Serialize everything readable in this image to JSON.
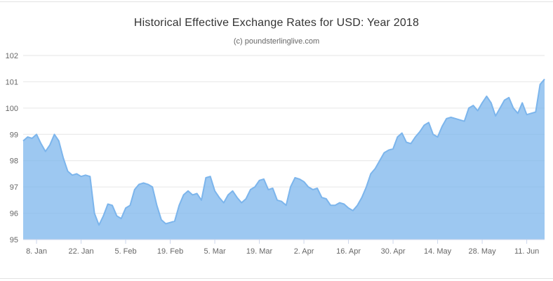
{
  "chart_data": {
    "type": "area",
    "title": "Historical Effective Exchange Rates for USD: Year 2018",
    "subtitle": "(c) poundsterlinglive.com",
    "ylabel": "",
    "xlabel": "",
    "ylim": [
      95,
      102
    ],
    "y_ticks": [
      95,
      96,
      97,
      98,
      99,
      100,
      101,
      102
    ],
    "grid": true,
    "legend": "none",
    "x_tick_labels": [
      "8. Jan",
      "22. Jan",
      "5. Feb",
      "19. Feb",
      "5. Mar",
      "19. Mar",
      "2. Apr",
      "16. Apr",
      "30. Apr",
      "14. May",
      "28. May",
      "11. Jun"
    ],
    "x_tick_indices": [
      3,
      13,
      23,
      33,
      43,
      53,
      63,
      73,
      83,
      93,
      103,
      113
    ],
    "series": [
      {
        "color": "#7cb5ec",
        "fill_opacity": 0.75,
        "values": [
          98.75,
          98.9,
          98.85,
          99.0,
          98.65,
          98.35,
          98.6,
          99.0,
          98.75,
          98.1,
          97.6,
          97.45,
          97.5,
          97.4,
          97.45,
          97.4,
          96.0,
          95.55,
          95.9,
          96.35,
          96.3,
          95.9,
          95.8,
          96.2,
          96.3,
          96.9,
          97.1,
          97.15,
          97.1,
          97.0,
          96.3,
          95.75,
          95.6,
          95.65,
          95.7,
          96.3,
          96.7,
          96.85,
          96.7,
          96.75,
          96.5,
          97.35,
          97.4,
          96.85,
          96.6,
          96.4,
          96.7,
          96.85,
          96.6,
          96.4,
          96.55,
          96.9,
          97.0,
          97.25,
          97.3,
          96.9,
          96.95,
          96.5,
          96.45,
          96.3,
          97.0,
          97.35,
          97.3,
          97.2,
          97.0,
          96.9,
          96.95,
          96.6,
          96.55,
          96.3,
          96.3,
          96.4,
          96.35,
          96.2,
          96.1,
          96.3,
          96.6,
          97.0,
          97.5,
          97.7,
          98.0,
          98.3,
          98.4,
          98.45,
          98.9,
          99.05,
          98.7,
          98.65,
          98.9,
          99.1,
          99.35,
          99.45,
          99.0,
          98.9,
          99.3,
          99.6,
          99.65,
          99.6,
          99.55,
          99.5,
          100.0,
          100.1,
          99.9,
          100.2,
          100.45,
          100.2,
          99.7,
          100.0,
          100.3,
          100.4,
          100.0,
          99.8,
          100.2,
          99.75,
          99.8,
          99.85,
          100.9,
          101.1
        ]
      }
    ],
    "colors": {
      "gridline": "#e6e6e6",
      "axis_line": "#ccd6eb",
      "tick_label": "#666666",
      "title": "#333333",
      "subtitle": "#666666"
    }
  }
}
